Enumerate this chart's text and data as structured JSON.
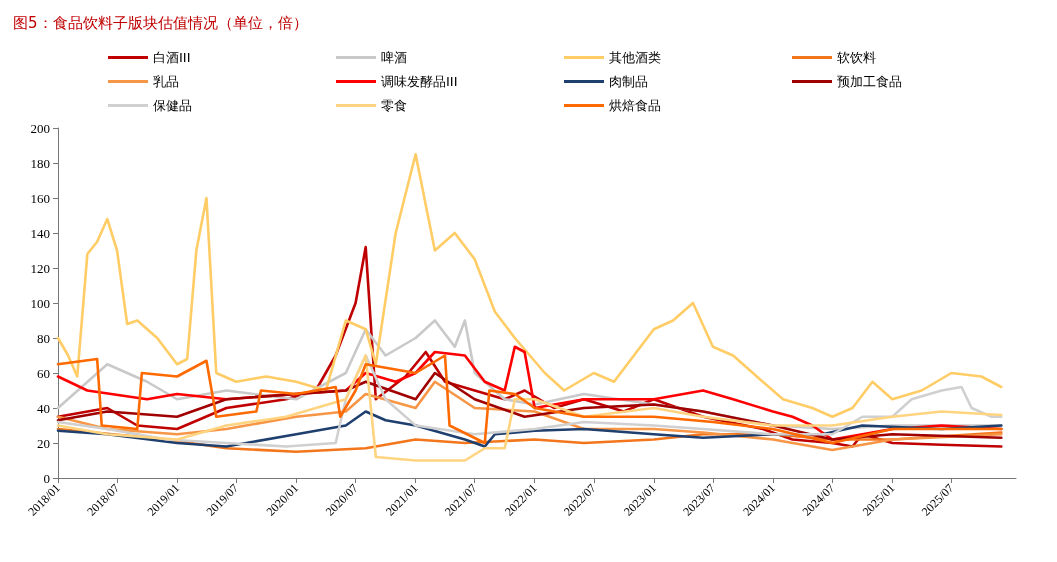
{
  "chart_data": {
    "type": "line",
    "title": "图5：食品饮料子版块估值情况（单位，倍）",
    "legend": "top",
    "grid": false,
    "marker": "none",
    "line_style": "solid",
    "ylim": [
      0,
      200
    ],
    "yticks": [
      0,
      20,
      40,
      60,
      80,
      100,
      120,
      140,
      160,
      180,
      200
    ],
    "xlim": [
      "2018-01-01",
      "2026-01-15"
    ],
    "xticks": [
      {
        "value": "2018-01",
        "label": "2018/01"
      },
      {
        "value": "2018-07",
        "label": "2018/07"
      },
      {
        "value": "2019-01",
        "label": "2019/01"
      },
      {
        "value": "2019-07",
        "label": "2019/07"
      },
      {
        "value": "2020-01",
        "label": "2020/01"
      },
      {
        "value": "2020-07",
        "label": "2020/07"
      },
      {
        "value": "2021-01",
        "label": "2021/01"
      },
      {
        "value": "2021-07",
        "label": "2021/07"
      },
      {
        "value": "2022-01",
        "label": "2022/01"
      },
      {
        "value": "2022-07",
        "label": "2022/07"
      },
      {
        "value": "2023-01",
        "label": "2023/01"
      },
      {
        "value": "2023-07",
        "label": "2023/07"
      },
      {
        "value": "2024-01",
        "label": "2024/01"
      },
      {
        "value": "2024-07",
        "label": "2024/07"
      },
      {
        "value": "2025-01",
        "label": "2025/01"
      },
      {
        "value": "2025-07",
        "label": "2025/07"
      }
    ],
    "series": [
      {
        "name": "白酒III",
        "color": "#c00000",
        "x": [
          "2018-01",
          "2018-06",
          "2018-09",
          "2019-01",
          "2019-06",
          "2019-12",
          "2020-03",
          "2020-05",
          "2020-07",
          "2020-08",
          "2020-09",
          "2020-12",
          "2021-02",
          "2021-04",
          "2021-07",
          "2021-10",
          "2021-12",
          "2022-03",
          "2022-06",
          "2022-10",
          "2023-01",
          "2023-06",
          "2023-12",
          "2024-03",
          "2024-07",
          "2024-09",
          "2024-10",
          "2025-01",
          "2025-06",
          "2025-12"
        ],
        "values": [
          35,
          40,
          30,
          28,
          40,
          45,
          50,
          70,
          100,
          132,
          45,
          58,
          72,
          55,
          50,
          45,
          50,
          40,
          45,
          38,
          45,
          35,
          28,
          22,
          20,
          18,
          25,
          20,
          19,
          18
        ]
      },
      {
        "name": "啤酒",
        "color": "#c9c9c9",
        "x": [
          "2018-01",
          "2018-06",
          "2018-10",
          "2019-01",
          "2019-06",
          "2020-01",
          "2020-06",
          "2020-08",
          "2020-10",
          "2021-01",
          "2021-03",
          "2021-05",
          "2021-06",
          "2021-07",
          "2021-10",
          "2022-01",
          "2022-06",
          "2023-01",
          "2023-06",
          "2024-01",
          "2024-07",
          "2025-01",
          "2025-12"
        ],
        "values": [
          40,
          65,
          55,
          45,
          50,
          45,
          60,
          85,
          70,
          80,
          90,
          75,
          90,
          60,
          45,
          42,
          48,
          42,
          38,
          30,
          28,
          30,
          30
        ]
      },
      {
        "name": "其他酒类",
        "color": "#ffcc66",
        "x": [
          "2018-01",
          "2018-02",
          "2018-03",
          "2018-04",
          "2018-05",
          "2018-06",
          "2018-07",
          "2018-08",
          "2018-09",
          "2018-11",
          "2019-01",
          "2019-02",
          "2019-03",
          "2019-04",
          "2019-05",
          "2019-07",
          "2019-10",
          "2020-01",
          "2020-04",
          "2020-06",
          "2020-08",
          "2020-09",
          "2020-11",
          "2021-01",
          "2021-03",
          "2021-05",
          "2021-07",
          "2021-09",
          "2021-11",
          "2022-02",
          "2022-04",
          "2022-07",
          "2022-09",
          "2023-01",
          "2023-03",
          "2023-05",
          "2023-07",
          "2023-09",
          "2023-12",
          "2024-02",
          "2024-05",
          "2024-07",
          "2024-09",
          "2024-11",
          "2025-01",
          "2025-04",
          "2025-07",
          "2025-10",
          "2025-12"
        ],
        "values": [
          80,
          70,
          58,
          128,
          135,
          148,
          130,
          88,
          90,
          80,
          65,
          68,
          130,
          160,
          60,
          55,
          58,
          55,
          50,
          90,
          85,
          65,
          140,
          185,
          130,
          140,
          125,
          95,
          80,
          60,
          50,
          60,
          55,
          85,
          90,
          100,
          75,
          70,
          55,
          45,
          40,
          35,
          40,
          55,
          45,
          50,
          60,
          58,
          52
        ]
      },
      {
        "name": "软饮料",
        "color": "#f4761c",
        "x": [
          "2018-01",
          "2018-12",
          "2019-06",
          "2020-01",
          "2020-08",
          "2021-01",
          "2021-06",
          "2022-01",
          "2022-06",
          "2023-01",
          "2023-06",
          "2024-01",
          "2024-07",
          "2025-01",
          "2025-12"
        ],
        "values": [
          28,
          22,
          17,
          15,
          17,
          22,
          20,
          22,
          20,
          22,
          25,
          25,
          22,
          22,
          26
        ]
      },
      {
        "name": "乳品",
        "color": "#f79646",
        "x": [
          "2018-01",
          "2018-06",
          "2019-01",
          "2019-06",
          "2020-01",
          "2020-06",
          "2020-08",
          "2021-01",
          "2021-03",
          "2021-07",
          "2022-01",
          "2022-06",
          "2023-01",
          "2023-06",
          "2024-01",
          "2024-07",
          "2025-01",
          "2025-12"
        ],
        "values": [
          35,
          28,
          25,
          28,
          35,
          38,
          48,
          40,
          55,
          40,
          38,
          28,
          28,
          26,
          22,
          16,
          22,
          25
        ]
      },
      {
        "name": "调味发酵品III",
        "color": "#ff0000",
        "x": [
          "2018-01",
          "2018-04",
          "2018-10",
          "2019-01",
          "2019-06",
          "2020-01",
          "2020-06",
          "2020-08",
          "2020-11",
          "2021-01",
          "2021-03",
          "2021-06",
          "2021-08",
          "2021-10",
          "2021-11",
          "2021-12",
          "2022-01",
          "2022-06",
          "2023-01",
          "2023-06",
          "2023-09",
          "2024-01",
          "2024-03",
          "2024-05",
          "2024-07",
          "2025-01",
          "2025-06",
          "2025-12"
        ],
        "values": [
          58,
          50,
          45,
          48,
          45,
          48,
          50,
          60,
          55,
          60,
          72,
          70,
          55,
          50,
          75,
          72,
          40,
          45,
          45,
          50,
          45,
          38,
          35,
          30,
          22,
          28,
          30,
          28
        ]
      },
      {
        "name": "肉制品",
        "color": "#1f3f6f",
        "x": [
          "2018-01",
          "2018-06",
          "2019-01",
          "2019-06",
          "2020-01",
          "2020-06",
          "2020-08",
          "2020-10",
          "2021-01",
          "2021-06",
          "2021-08",
          "2021-09",
          "2022-01",
          "2022-06",
          "2023-01",
          "2023-06",
          "2024-01",
          "2024-06",
          "2024-10",
          "2025-06",
          "2025-12"
        ],
        "values": [
          27,
          25,
          20,
          18,
          25,
          30,
          38,
          33,
          30,
          22,
          18,
          25,
          27,
          28,
          25,
          23,
          25,
          25,
          30,
          28,
          30
        ]
      },
      {
        "name": "预加工食品",
        "color": "#a00000",
        "x": [
          "2018-01",
          "2018-06",
          "2019-01",
          "2019-06",
          "2020-01",
          "2020-06",
          "2020-08",
          "2021-01",
          "2021-03",
          "2021-07",
          "2021-12",
          "2022-06",
          "2023-01",
          "2023-06",
          "2024-01",
          "2024-07",
          "2025-01",
          "2025-12"
        ],
        "values": [
          33,
          38,
          35,
          45,
          48,
          50,
          55,
          45,
          60,
          45,
          35,
          40,
          42,
          38,
          30,
          22,
          25,
          23
        ]
      },
      {
        "name": "保健品",
        "color": "#d0d0d0",
        "x": [
          "2018-01",
          "2018-06",
          "2018-12",
          "2019-06",
          "2019-12",
          "2020-05",
          "2020-06",
          "2020-08",
          "2020-10",
          "2021-01",
          "2021-07",
          "2022-01",
          "2022-06",
          "2023-01",
          "2023-06",
          "2024-01",
          "2024-07",
          "2024-10",
          "2025-01",
          "2025-03",
          "2025-06",
          "2025-08",
          "2025-09",
          "2025-11",
          "2025-12"
        ],
        "values": [
          32,
          28,
          22,
          20,
          18,
          20,
          45,
          70,
          45,
          30,
          25,
          28,
          32,
          30,
          28,
          25,
          25,
          35,
          35,
          45,
          50,
          52,
          40,
          35,
          35
        ]
      },
      {
        "name": "零食",
        "color": "#ffd480",
        "x": [
          "2018-01",
          "2018-06",
          "2019-01",
          "2019-06",
          "2019-12",
          "2020-06",
          "2020-08",
          "2020-09",
          "2021-01",
          "2021-06",
          "2021-08",
          "2021-10",
          "2021-11",
          "2022-01",
          "2022-06",
          "2023-01",
          "2023-06",
          "2024-01",
          "2024-07",
          "2025-01",
          "2025-06",
          "2025-12"
        ],
        "values": [
          30,
          25,
          22,
          30,
          35,
          45,
          70,
          12,
          10,
          10,
          17,
          17,
          45,
          45,
          35,
          40,
          35,
          30,
          30,
          35,
          38,
          36
        ]
      },
      {
        "name": "烘焙食品",
        "color": "#ff6a00",
        "x": [
          "2018-01",
          "2018-05-01",
          "2018-05-15",
          "2018-09-01",
          "2018-09-15",
          "2019-01",
          "2019-04",
          "2019-05",
          "2019-09-01",
          "2019-09-15",
          "2020-01",
          "2020-05-01",
          "2020-05-15",
          "2020-07",
          "2020-08",
          "2021-01",
          "2021-04-01",
          "2021-04-15",
          "2021-08-01",
          "2021-08-15",
          "2021-11",
          "2022-01",
          "2022-06",
          "2023-01",
          "2023-07",
          "2024-01",
          "2024-07",
          "2025-01",
          "2025-12"
        ],
        "values": [
          65,
          68,
          30,
          28,
          60,
          58,
          67,
          35,
          38,
          50,
          48,
          52,
          35,
          50,
          65,
          60,
          70,
          30,
          20,
          50,
          48,
          40,
          35,
          35,
          32,
          28,
          20,
          28,
          28
        ]
      }
    ]
  }
}
